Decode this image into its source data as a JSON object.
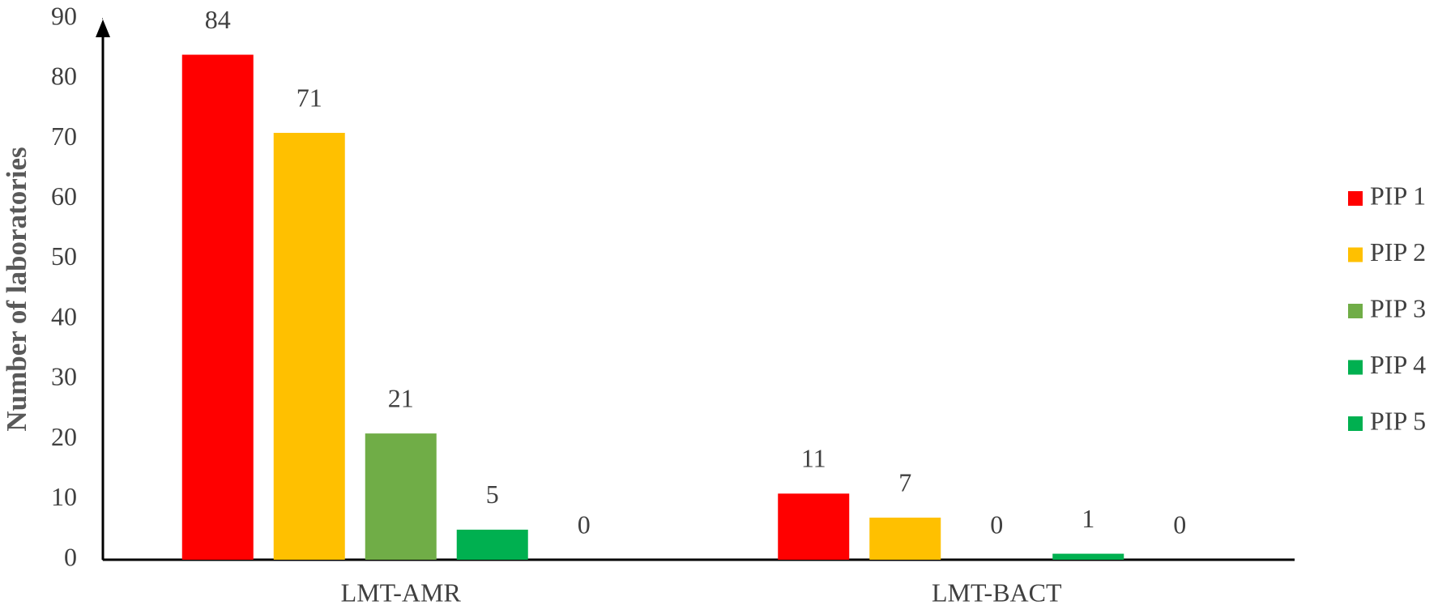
{
  "chart_data": {
    "type": "bar",
    "ylabel": "Number of laboratories",
    "categories": [
      "LMT-AMR",
      "LMT-BACT"
    ],
    "series": [
      {
        "name": "PIP 1",
        "color": "#ff0000",
        "values": [
          84,
          11
        ]
      },
      {
        "name": "PIP 2",
        "color": "#ffc000",
        "values": [
          71,
          7
        ]
      },
      {
        "name": "PIP 3",
        "color": "#70ad47",
        "values": [
          21,
          0
        ]
      },
      {
        "name": "PIP 4",
        "color": "#00b050",
        "values": [
          5,
          1
        ]
      },
      {
        "name": "PIP 5",
        "color": "#00b050",
        "values": [
          0,
          0
        ]
      }
    ],
    "ylim": [
      0,
      90
    ],
    "yticks": [
      0,
      10,
      20,
      30,
      40,
      50,
      60,
      70,
      80,
      90
    ],
    "grid": false,
    "legend": "right",
    "data_labels": true
  }
}
